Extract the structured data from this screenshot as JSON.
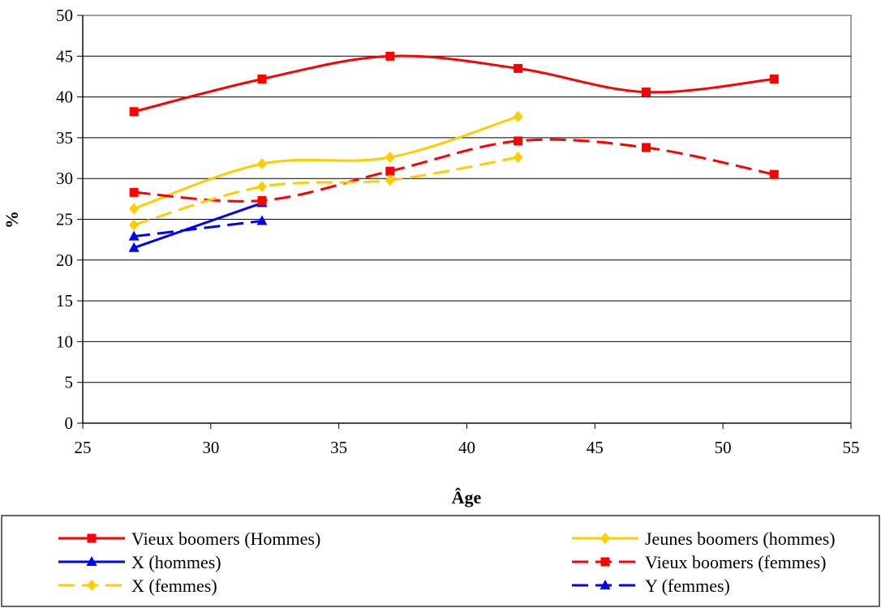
{
  "chart_data": {
    "type": "line",
    "title": "",
    "xlabel": "Âge",
    "ylabel": "%",
    "xlim": [
      25,
      55
    ],
    "ylim": [
      0,
      50
    ],
    "xticks": [
      25,
      30,
      35,
      40,
      45,
      50,
      55
    ],
    "yticks": [
      0,
      5,
      10,
      15,
      20,
      25,
      30,
      35,
      40,
      45,
      50
    ],
    "grid": "horizontal",
    "legend_placement": "bottom",
    "series": [
      {
        "name": "Vieux boomers (Hommes)",
        "color": "#ff0000",
        "dash": "solid",
        "marker": "square",
        "x": [
          27,
          32,
          37,
          42,
          47,
          52
        ],
        "y": [
          38.2,
          42.2,
          45.0,
          43.5,
          40.6,
          42.2
        ]
      },
      {
        "name": "Jeunes boomers (hommes)",
        "color": "#ffcc00",
        "dash": "solid",
        "marker": "diamond",
        "x": [
          27,
          32,
          37,
          42
        ],
        "y": [
          26.3,
          31.8,
          32.6,
          37.6
        ]
      },
      {
        "name": "X (hommes)",
        "color": "#0000ff",
        "dash": "solid",
        "marker": "triangle",
        "x": [
          27,
          32
        ],
        "y": [
          21.5,
          27.0
        ]
      },
      {
        "name": "Vieux boomers (femmes)",
        "color": "#ff0000",
        "dash": "dashed",
        "marker": "square",
        "x": [
          27,
          32,
          37,
          42,
          47,
          52
        ],
        "y": [
          28.3,
          27.3,
          30.9,
          34.6,
          33.8,
          30.5
        ]
      },
      {
        "name": "X (femmes)",
        "color": "#ffcc00",
        "dash": "dashed",
        "marker": "diamond",
        "x": [
          27,
          32,
          37,
          42
        ],
        "y": [
          24.3,
          29.0,
          29.8,
          32.6
        ]
      },
      {
        "name": "Y (femmes)",
        "color": "#0000ff",
        "dash": "dashed",
        "marker": "triangle",
        "x": [
          27,
          32
        ],
        "y": [
          22.9,
          24.8
        ]
      }
    ]
  }
}
